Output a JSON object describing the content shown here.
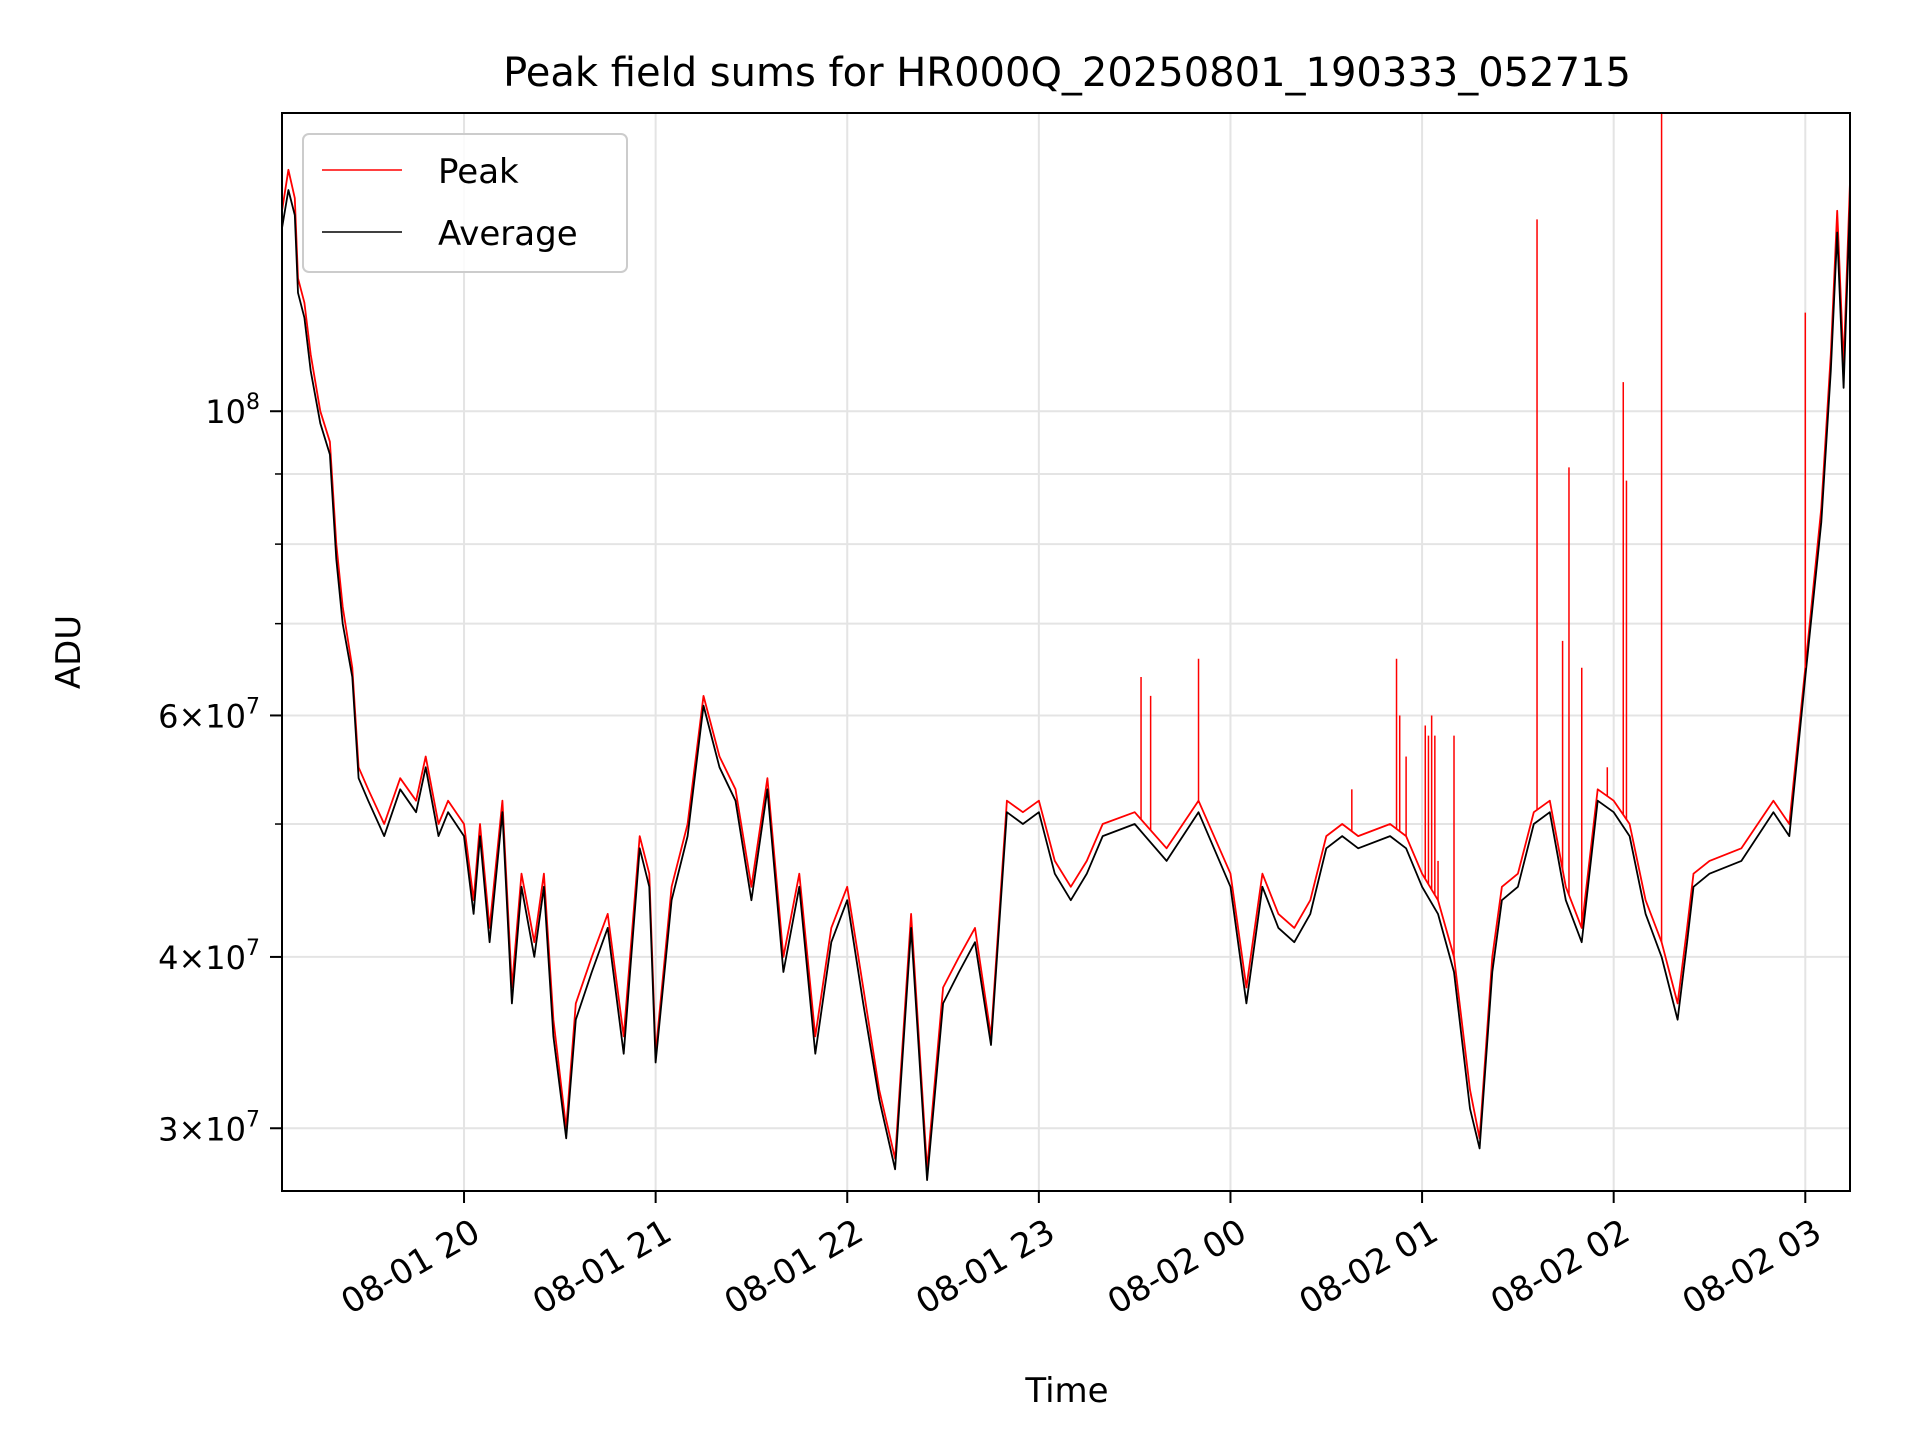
{
  "chart_data": {
    "type": "line",
    "title": "Peak field sums for HR000Q_20250801_190333_052715",
    "xlabel": "Time",
    "ylabel": "ADU",
    "yscale": "log",
    "grid": true,
    "legend_position": "top-left",
    "x_ticks": [
      "08-01 20",
      "08-01 21",
      "08-01 22",
      "08-01 23",
      "08-02 00",
      "08-02 01",
      "08-02 02",
      "08-02 03"
    ],
    "y_ticks": [
      {
        "value": 30000000,
        "label": "3 × 10^7",
        "mantissa": "3",
        "exponent": "7"
      },
      {
        "value": 40000000,
        "label": "4 × 10^7",
        "mantissa": "4",
        "exponent": "7"
      },
      {
        "value": 60000000,
        "label": "6 × 10^7",
        "mantissa": "6",
        "exponent": "7"
      },
      {
        "value": 100000000,
        "label": "10^8",
        "mantissa": "",
        "exponent": "8"
      }
    ],
    "y_minor_ticks": [
      50000000,
      70000000,
      80000000,
      90000000
    ],
    "xlim": [
      "2025-08-01 19:03",
      "2025-08-02 03:14"
    ],
    "ylim": [
      27000000,
      165000000
    ],
    "series": [
      {
        "name": "Peak",
        "color": "#ff0000",
        "x": [
          "19:03",
          "19:05",
          "19:07",
          "19:08",
          "19:10",
          "19:12",
          "19:15",
          "19:18",
          "19:20",
          "19:22",
          "19:25",
          "19:27",
          "19:30",
          "19:35",
          "19:40",
          "19:45",
          "19:48",
          "19:52",
          "19:55",
          "20:00",
          "20:03",
          "20:05",
          "20:08",
          "20:12",
          "20:15",
          "20:18",
          "20:22",
          "20:25",
          "20:28",
          "20:32",
          "20:35",
          "20:40",
          "20:45",
          "20:50",
          "20:55",
          "20:58",
          "21:00",
          "21:05",
          "21:10",
          "21:15",
          "21:20",
          "21:25",
          "21:30",
          "21:35",
          "21:40",
          "21:45",
          "21:50",
          "21:55",
          "22:00",
          "22:05",
          "22:10",
          "22:15",
          "22:20",
          "22:25",
          "22:30",
          "22:35",
          "22:40",
          "22:45",
          "22:50",
          "22:55",
          "23:00",
          "23:05",
          "23:10",
          "23:15",
          "23:20",
          "23:30",
          "23:40",
          "23:50",
          "00:00",
          "00:05",
          "00:10",
          "00:15",
          "00:20",
          "00:25",
          "00:30",
          "00:35",
          "00:40",
          "00:50",
          "00:55",
          "01:00",
          "01:05",
          "01:10",
          "01:15",
          "01:18",
          "01:22",
          "01:25",
          "01:30",
          "01:35",
          "01:40",
          "01:45",
          "01:50",
          "01:55",
          "02:00",
          "02:05",
          "02:10",
          "02:15",
          "02:20",
          "02:23",
          "02:25",
          "02:30",
          "02:40",
          "02:50",
          "02:55",
          "03:00",
          "03:05",
          "03:08",
          "03:10",
          "03:12",
          "03:14"
        ],
        "y": [
          140000000,
          150000000,
          143000000,
          125000000,
          120000000,
          110000000,
          100000000,
          95000000,
          80000000,
          72000000,
          65000000,
          55000000,
          53000000,
          50000000,
          54000000,
          52000000,
          56000000,
          50000000,
          52000000,
          50000000,
          44000000,
          50000000,
          42000000,
          52000000,
          38000000,
          46000000,
          41000000,
          46000000,
          36000000,
          30000000,
          37000000,
          40000000,
          43000000,
          35000000,
          49000000,
          46000000,
          34000000,
          45000000,
          50000000,
          62000000,
          56000000,
          53000000,
          45000000,
          54000000,
          40000000,
          46000000,
          35000000,
          42000000,
          45000000,
          38000000,
          32000000,
          28500000,
          43000000,
          28000000,
          38000000,
          40000000,
          42000000,
          35000000,
          52000000,
          51000000,
          52000000,
          47000000,
          45000000,
          47000000,
          50000000,
          51000000,
          48000000,
          52000000,
          46000000,
          38000000,
          46000000,
          43000000,
          42000000,
          44000000,
          49000000,
          50000000,
          49000000,
          50000000,
          49000000,
          46000000,
          44000000,
          40000000,
          32000000,
          29500000,
          40000000,
          45000000,
          46000000,
          51000000,
          52000000,
          45000000,
          42000000,
          53000000,
          52000000,
          50000000,
          44000000,
          41000000,
          37000000,
          42000000,
          46000000,
          47000000,
          48000000,
          52000000,
          50000000,
          65000000,
          85000000,
          110000000,
          140000000,
          108000000,
          147000000
        ]
      },
      {
        "name": "Average",
        "color": "#000000",
        "x": [
          "19:03",
          "19:05",
          "19:07",
          "19:08",
          "19:10",
          "19:12",
          "19:15",
          "19:18",
          "19:20",
          "19:22",
          "19:25",
          "19:27",
          "19:30",
          "19:35",
          "19:40",
          "19:45",
          "19:48",
          "19:52",
          "19:55",
          "20:00",
          "20:03",
          "20:05",
          "20:08",
          "20:12",
          "20:15",
          "20:18",
          "20:22",
          "20:25",
          "20:28",
          "20:32",
          "20:35",
          "20:40",
          "20:45",
          "20:50",
          "20:55",
          "20:58",
          "21:00",
          "21:05",
          "21:10",
          "21:15",
          "21:20",
          "21:25",
          "21:30",
          "21:35",
          "21:40",
          "21:45",
          "21:50",
          "21:55",
          "22:00",
          "22:05",
          "22:10",
          "22:15",
          "22:20",
          "22:25",
          "22:30",
          "22:35",
          "22:40",
          "22:45",
          "22:50",
          "22:55",
          "23:00",
          "23:05",
          "23:10",
          "23:15",
          "23:20",
          "23:30",
          "23:40",
          "23:50",
          "00:00",
          "00:05",
          "00:10",
          "00:15",
          "00:20",
          "00:25",
          "00:30",
          "00:35",
          "00:40",
          "00:50",
          "00:55",
          "01:00",
          "01:05",
          "01:10",
          "01:15",
          "01:18",
          "01:22",
          "01:25",
          "01:30",
          "01:35",
          "01:40",
          "01:45",
          "01:50",
          "01:55",
          "02:00",
          "02:05",
          "02:10",
          "02:15",
          "02:20",
          "02:23",
          "02:25",
          "02:30",
          "02:40",
          "02:50",
          "02:55",
          "03:00",
          "03:05",
          "03:08",
          "03:10",
          "03:12",
          "03:14"
        ],
        "y": [
          136000000,
          145000000,
          139000000,
          122000000,
          117000000,
          107000000,
          98000000,
          93000000,
          78000000,
          70000000,
          64000000,
          54000000,
          52000000,
          49000000,
          53000000,
          51000000,
          55000000,
          49000000,
          51000000,
          49000000,
          43000000,
          49000000,
          41000000,
          51000000,
          37000000,
          45000000,
          40000000,
          45000000,
          35000000,
          29500000,
          36000000,
          39000000,
          42000000,
          34000000,
          48000000,
          45000000,
          33500000,
          44000000,
          49000000,
          61000000,
          55000000,
          52000000,
          44000000,
          53000000,
          39000000,
          45000000,
          34000000,
          41000000,
          44000000,
          37000000,
          31500000,
          28000000,
          42000000,
          27500000,
          37000000,
          39000000,
          41000000,
          34500000,
          51000000,
          50000000,
          51000000,
          46000000,
          44000000,
          46000000,
          49000000,
          50000000,
          47000000,
          51000000,
          45000000,
          37000000,
          45000000,
          42000000,
          41000000,
          43000000,
          48000000,
          49000000,
          48000000,
          49000000,
          48000000,
          45000000,
          43000000,
          39000000,
          31000000,
          29000000,
          39000000,
          44000000,
          45000000,
          50000000,
          51000000,
          44000000,
          41000000,
          52000000,
          51000000,
          49000000,
          43000000,
          40000000,
          36000000,
          41000000,
          45000000,
          46000000,
          47000000,
          51000000,
          49000000,
          64000000,
          83000000,
          107000000,
          135000000,
          104000000,
          142000000
        ]
      }
    ],
    "spikes": {
      "series": "Peak",
      "x": [
        "23:32",
        "23:35",
        "23:50",
        "00:38",
        "00:52",
        "00:53",
        "00:55",
        "01:01",
        "01:02",
        "01:03",
        "01:04",
        "01:05",
        "01:10",
        "01:36",
        "01:44",
        "01:46",
        "01:50",
        "01:58",
        "02:03",
        "02:04",
        "02:15",
        "03:00"
      ],
      "y": [
        64000000,
        62000000,
        66000000,
        53000000,
        66000000,
        60000000,
        56000000,
        59000000,
        58000000,
        60000000,
        58000000,
        47000000,
        58000000,
        138000000,
        68000000,
        91000000,
        65000000,
        55000000,
        105000000,
        89000000,
        165000000,
        118000000
      ]
    }
  }
}
